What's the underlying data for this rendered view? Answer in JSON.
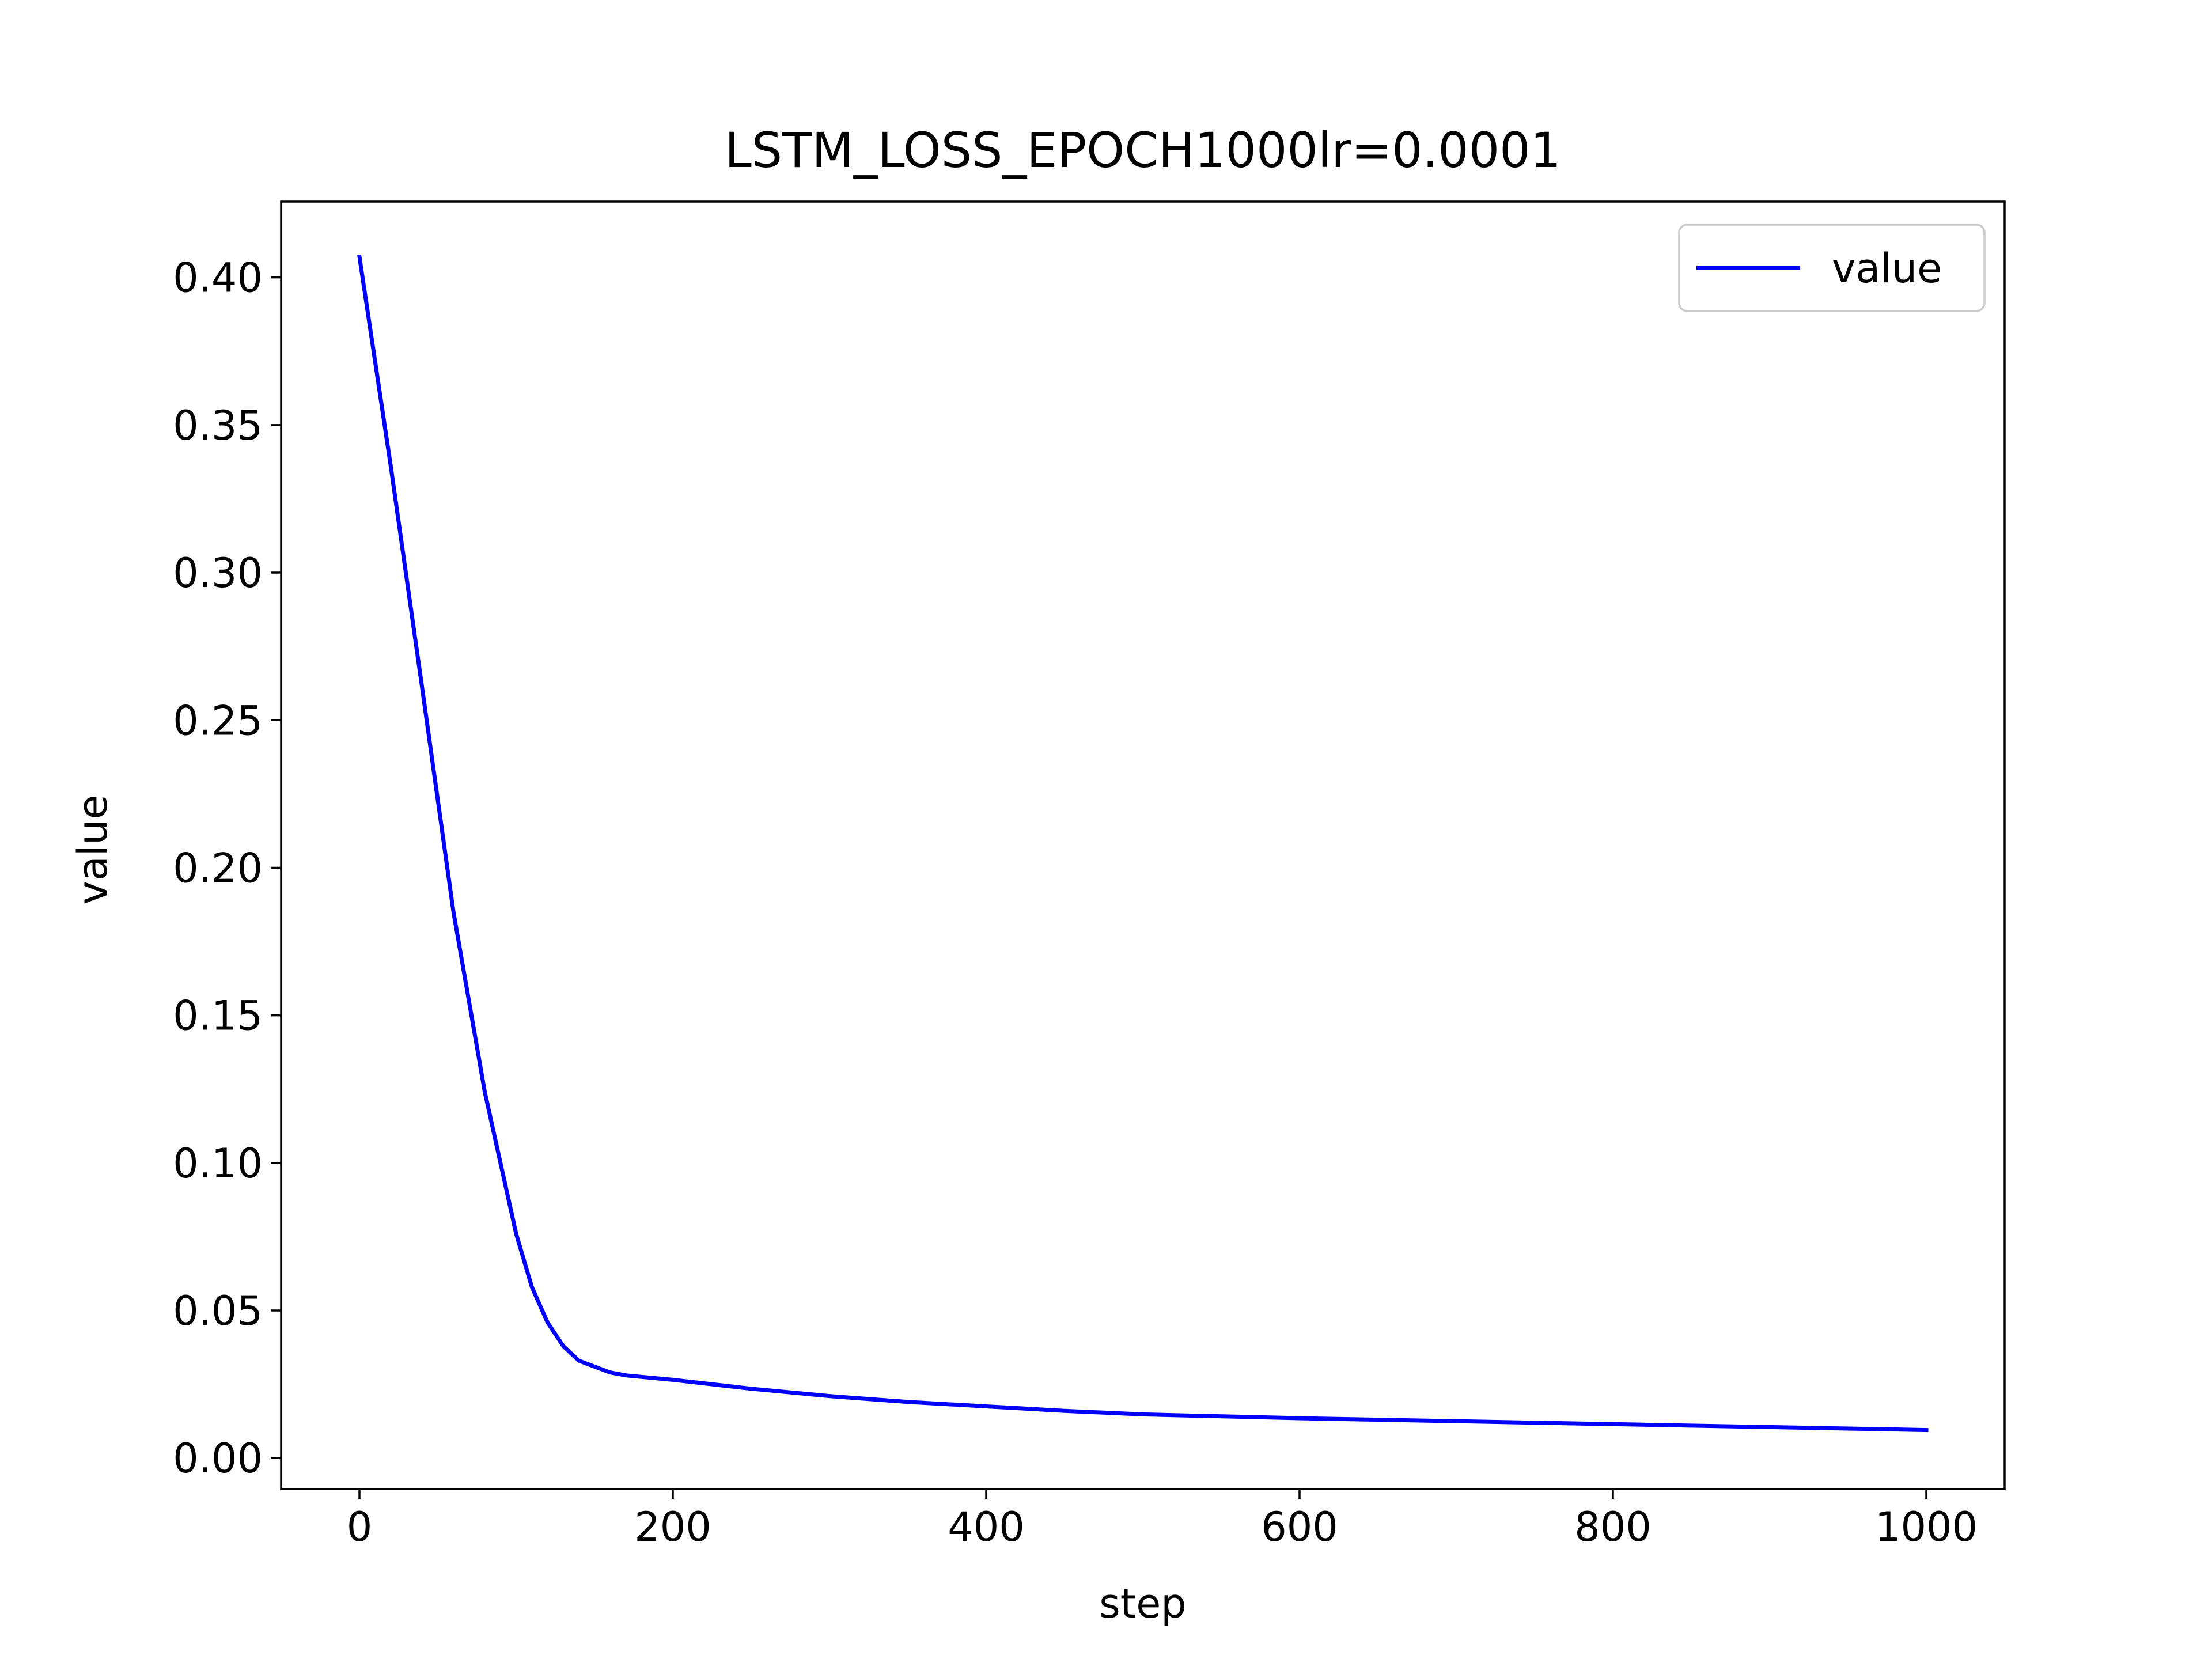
{
  "chart_data": {
    "type": "line",
    "title": "LSTM_LOSS_EPOCH1000lr=0.0001",
    "xlabel": "step",
    "ylabel": "value",
    "xlim": [
      -50,
      1050
    ],
    "ylim": [
      -0.0105,
      0.4257
    ],
    "xticks": [
      0,
      200,
      400,
      600,
      800,
      1000
    ],
    "xtick_labels": [
      "0",
      "200",
      "400",
      "600",
      "800",
      "1000"
    ],
    "yticks": [
      0.0,
      0.05,
      0.1,
      0.15,
      0.2,
      0.25,
      0.3,
      0.35,
      0.4
    ],
    "ytick_labels": [
      "0.00",
      "0.05",
      "0.10",
      "0.15",
      "0.20",
      "0.25",
      "0.30",
      "0.35",
      "0.40"
    ],
    "grid": false,
    "legend": {
      "position": "top-right",
      "entries": [
        "value"
      ]
    },
    "series": [
      {
        "name": "value",
        "color": "#0000ff",
        "x": [
          0,
          20,
          40,
          60,
          80,
          100,
          110,
          120,
          130,
          140,
          150,
          160,
          170,
          180,
          200,
          250,
          300,
          350,
          400,
          450,
          500,
          600,
          700,
          800,
          900,
          1000
        ],
        "y": [
          0.407,
          0.336,
          0.261,
          0.185,
          0.124,
          0.076,
          0.058,
          0.046,
          0.038,
          0.033,
          0.031,
          0.029,
          0.028,
          0.0275,
          0.0265,
          0.0235,
          0.021,
          0.019,
          0.0175,
          0.016,
          0.0148,
          0.0135,
          0.0125,
          0.0115,
          0.0105,
          0.0095
        ]
      }
    ]
  }
}
